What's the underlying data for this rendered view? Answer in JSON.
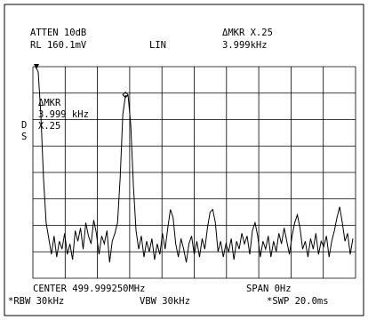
{
  "chart_data": {
    "type": "line",
    "header": [
      "ATTEN 10dB",
      "RL 160.1mV",
      "LIN",
      "ΔMKR X.25",
      "3.999kHz"
    ],
    "marker_annotation": [
      "ΔMKR",
      "3.999 kHz",
      "X.25"
    ],
    "side_label": [
      "D",
      "S"
    ],
    "footer": [
      "CENTER 499.999250MHz",
      "SPAN 0Hz",
      "*RBW 30kHz",
      "VBW 30kHz",
      "*SWP 20.0ms"
    ],
    "series": [
      {
        "color": "#000000",
        "values": [
          8.0,
          7.8,
          6.2,
          3.8,
          2.1,
          1.5,
          0.9,
          1.6,
          0.8,
          1.4,
          1.1,
          1.7,
          0.9,
          1.3,
          0.7,
          1.8,
          1.4,
          1.9,
          1.1,
          2.1,
          1.6,
          1.3,
          2.2,
          1.7,
          0.9,
          1.6,
          1.3,
          1.8,
          0.6,
          1.4,
          1.7,
          2.1,
          3.8,
          6.2,
          6.9,
          6.9,
          5.8,
          3.5,
          1.8,
          1.1,
          1.6,
          0.8,
          1.4,
          1.0,
          1.5,
          0.7,
          1.3,
          0.9,
          1.7,
          1.1,
          1.9,
          2.6,
          2.3,
          1.3,
          0.8,
          1.5,
          1.1,
          0.6,
          1.3,
          1.6,
          0.9,
          1.4,
          0.8,
          1.5,
          1.1,
          1.9,
          2.5,
          2.6,
          2.1,
          1.0,
          1.4,
          0.8,
          1.3,
          1.0,
          1.5,
          0.7,
          1.4,
          1.1,
          1.7,
          1.3,
          1.6,
          0.9,
          1.8,
          2.1,
          1.6,
          0.8,
          1.4,
          1.1,
          1.6,
          0.8,
          1.4,
          1.0,
          1.7,
          1.3,
          1.9,
          1.4,
          0.9,
          1.6,
          2.1,
          2.4,
          1.9,
          1.1,
          1.4,
          0.8,
          1.5,
          1.1,
          1.7,
          0.9,
          1.4,
          1.2,
          1.6,
          0.8,
          1.4,
          1.8,
          2.3,
          2.7,
          2.1,
          1.4,
          1.7,
          0.9,
          1.5
        ]
      }
    ],
    "ylim": [
      0,
      8
    ],
    "yticks": [
      0,
      1,
      2,
      3,
      4,
      5,
      6,
      7,
      8
    ],
    "xlim": [
      0,
      10
    ],
    "xticks": [
      0,
      1,
      2,
      3,
      4,
      5,
      6,
      7,
      8,
      9,
      10
    ],
    "grid": true
  }
}
